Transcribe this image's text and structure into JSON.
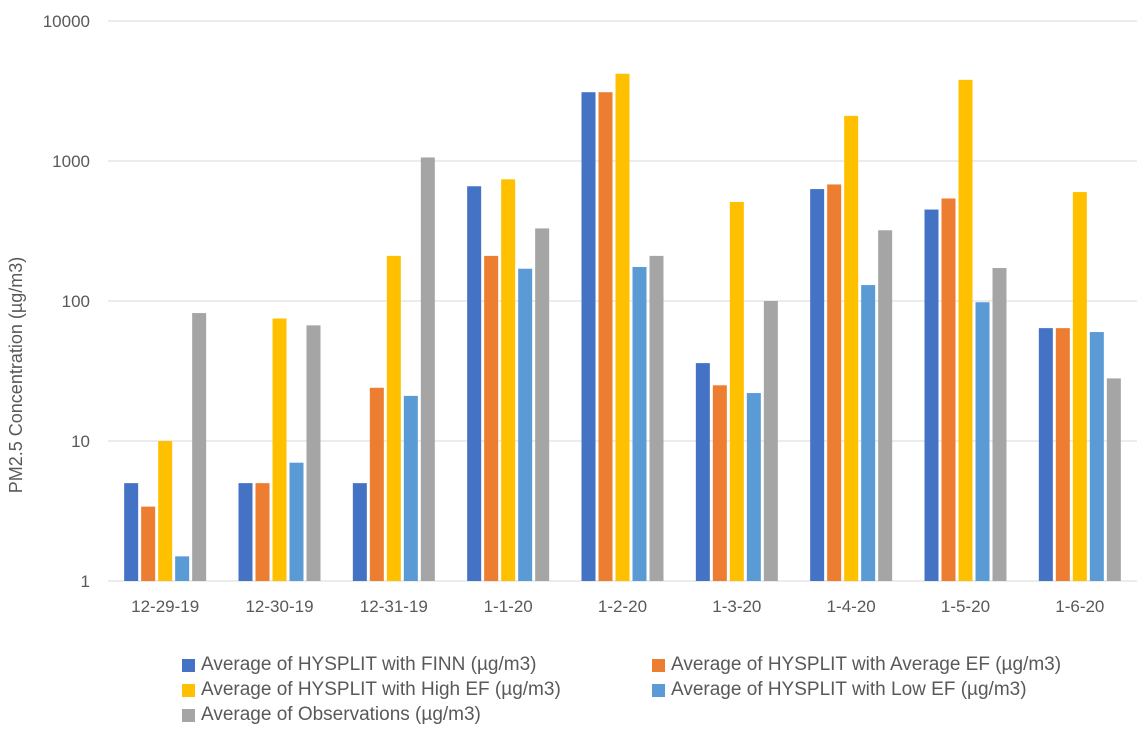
{
  "chart_data": {
    "type": "bar",
    "title": "",
    "xlabel": "",
    "ylabel": "PM2.5 Concentration (µg/m3)",
    "yscale": "log",
    "ylim": [
      1,
      10000
    ],
    "yticks": [
      "1",
      "10",
      "100",
      "1000",
      "10000"
    ],
    "grid": "horizontal",
    "legend_position": "bottom",
    "categories": [
      "12-29-19",
      "12-30-19",
      "12-31-19",
      "1-1-20",
      "1-2-20",
      "1-3-20",
      "1-4-20",
      "1-5-20",
      "1-6-20"
    ],
    "series": [
      {
        "name": "Average of HYSPLIT with FINN (µg/m3)",
        "color": "#4472C4",
        "values": [
          5,
          5,
          5,
          660,
          3100,
          36,
          630,
          450,
          64
        ]
      },
      {
        "name": "Average of HYSPLIT with Average EF (µg/m3)",
        "color": "#ED7D31",
        "values": [
          3.4,
          5,
          24,
          210,
          3100,
          25,
          680,
          540,
          64
        ]
      },
      {
        "name": "Average of HYSPLIT with High EF (µg/m3)",
        "color": "#FFC000",
        "values": [
          10,
          75,
          210,
          740,
          4200,
          510,
          2100,
          3800,
          600
        ]
      },
      {
        "name": "Average of HYSPLIT with Low EF (µg/m3)",
        "color": "#5B9BD5",
        "values": [
          1.5,
          7,
          21,
          170,
          175,
          22,
          130,
          98,
          60
        ]
      },
      {
        "name": "Average of Observations (µg/m3)",
        "color": "#A5A5A5",
        "values": [
          82,
          67,
          1060,
          330,
          210,
          100,
          320,
          172,
          28
        ]
      }
    ]
  }
}
